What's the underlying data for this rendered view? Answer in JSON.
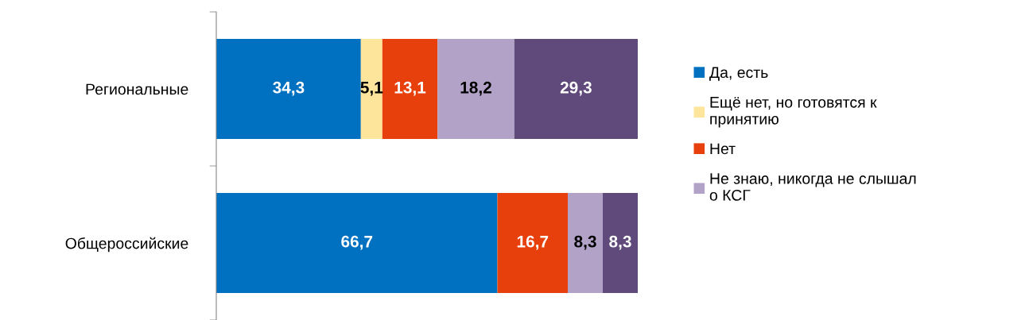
{
  "chart_data": {
    "type": "bar",
    "orientation": "horizontal",
    "stacked": true,
    "categories": [
      "Региональные",
      "Общероссийские"
    ],
    "series": [
      {
        "name": "Да, есть",
        "color": "#0070c0",
        "values": [
          34.3,
          66.7
        ],
        "value_labels": [
          "34,3",
          "66,7"
        ]
      },
      {
        "name": "Ещё нет, но готовятся к\nпринятию",
        "color": "#fde59b",
        "values": [
          5.1,
          null
        ],
        "value_labels": [
          "5,1",
          null
        ]
      },
      {
        "name": "Нет",
        "color": "#e8400c",
        "values": [
          13.1,
          16.7
        ],
        "value_labels": [
          "13,1",
          "16,7"
        ]
      },
      {
        "name": "Не знаю, никогда не слышал\nо КСГ",
        "color": "#b3a2c7",
        "values": [
          18.2,
          8.3
        ],
        "value_labels": [
          "18,2",
          "8,3"
        ]
      },
      {
        "color": "#604a7b",
        "values": [
          29.3,
          8.3
        ],
        "value_labels": [
          "29,3",
          "8,3"
        ]
      }
    ],
    "legend": "right",
    "grid": false,
    "tick_labels": "y"
  }
}
